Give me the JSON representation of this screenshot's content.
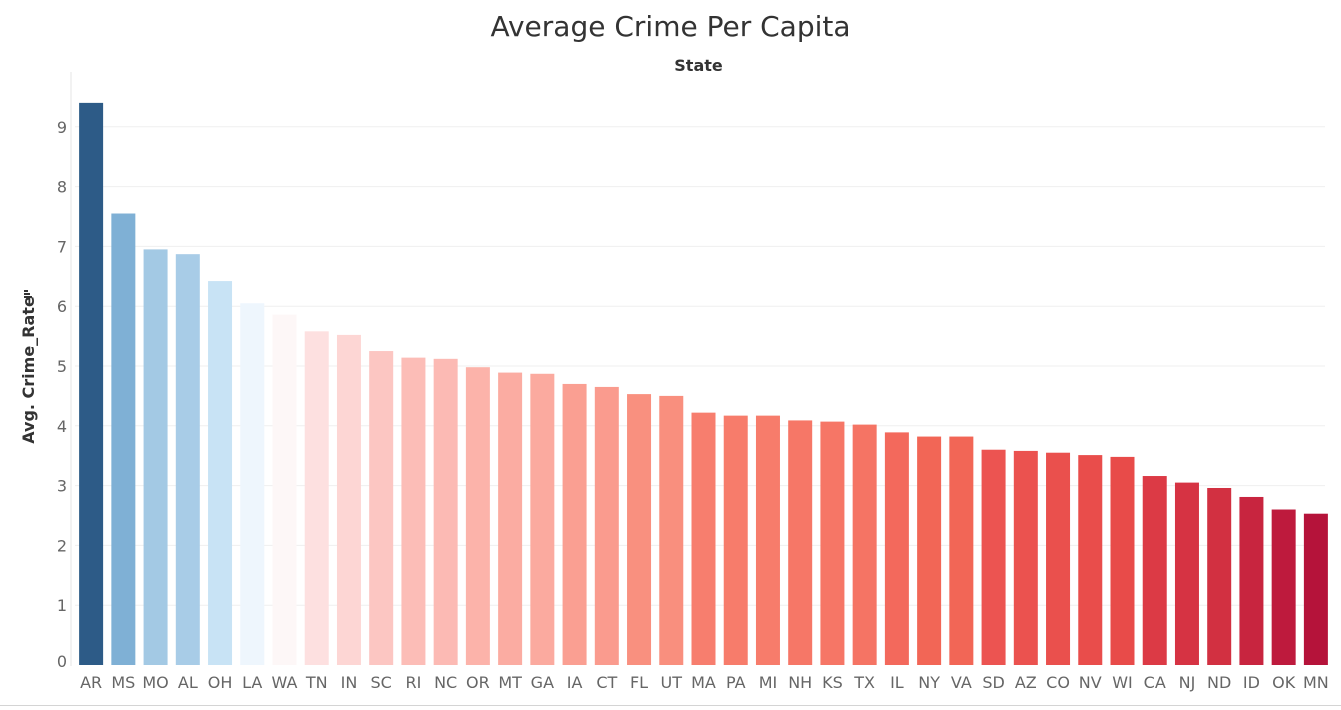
{
  "chart_data": {
    "type": "bar",
    "title": "Average Crime Per Capita",
    "column_header": "State",
    "ylabel": "Avg. Crime_Rate",
    "sort_icon": "sort-descending-icon",
    "ylim": [
      0,
      9.6
    ],
    "yticks": [
      0,
      1,
      2,
      3,
      4,
      5,
      6,
      7,
      8,
      9
    ],
    "grid": true,
    "categories": [
      "AR",
      "MS",
      "MO",
      "AL",
      "OH",
      "LA",
      "WA",
      "TN",
      "IN",
      "SC",
      "RI",
      "NC",
      "OR",
      "MT",
      "GA",
      "IA",
      "CT",
      "FL",
      "UT",
      "MA",
      "PA",
      "MI",
      "NH",
      "KS",
      "TX",
      "IL",
      "NY",
      "VA",
      "SD",
      "AZ",
      "CO",
      "NV",
      "WI",
      "CA",
      "NJ",
      "ND",
      "ID",
      "OK",
      "MN"
    ],
    "values": [
      9.4,
      7.55,
      6.95,
      6.87,
      6.42,
      6.05,
      5.86,
      5.58,
      5.52,
      5.25,
      5.14,
      5.12,
      4.98,
      4.89,
      4.87,
      4.7,
      4.65,
      4.53,
      4.5,
      4.22,
      4.17,
      4.17,
      4.09,
      4.07,
      4.02,
      3.89,
      3.82,
      3.82,
      3.6,
      3.58,
      3.55,
      3.51,
      3.48,
      3.16,
      3.05,
      2.96,
      2.81,
      2.6,
      2.53
    ],
    "colors": [
      "#2d5b87",
      "#7fb0d5",
      "#a3c9e4",
      "#a8cce7",
      "#c8e3f5",
      "#eef6fd",
      "#fdf7f7",
      "#fde0e0",
      "#fdd6d4",
      "#fcc6c2",
      "#fcbdb7",
      "#fcbab4",
      "#fcb3aa",
      "#fbaca2",
      "#fbaa9f",
      "#fa9f92",
      "#fa9b8e",
      "#f9907f",
      "#f98f7e",
      "#f77e6e",
      "#f77c6b",
      "#f77c6b",
      "#f67767",
      "#f67666",
      "#f57464",
      "#f3695c",
      "#f26656",
      "#f26656",
      "#ec5451",
      "#eb524f",
      "#ea504d",
      "#e94d4b",
      "#e84b49",
      "#dc3a45",
      "#d63343",
      "#d23041",
      "#c8253f",
      "#be1a3d",
      "#b5133a"
    ]
  }
}
